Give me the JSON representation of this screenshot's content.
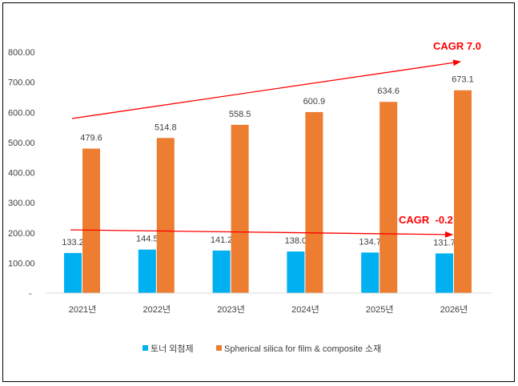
{
  "chart_data": {
    "type": "bar",
    "categories": [
      "2021년",
      "2022년",
      "2023년",
      "2024년",
      "2025년",
      "2026년"
    ],
    "series": [
      {
        "name": "토너 외첨제",
        "color": "#00B0F0",
        "values": [
          133.2,
          144.5,
          141.2,
          138.0,
          134.7,
          131.7
        ]
      },
      {
        "name": "Spherical silica for film & composite 소재",
        "color": "#ED7D31",
        "values": [
          479.6,
          514.8,
          558.5,
          600.9,
          634.6,
          673.1
        ]
      }
    ],
    "ylim": [
      0,
      800
    ],
    "yticks": [
      "-",
      "100.00",
      "200.00",
      "300.00",
      "400.00",
      "500.00",
      "600.00",
      "700.00",
      "800.00"
    ],
    "grid": false,
    "legend": "bottom",
    "annotations": [
      {
        "text": "CAGR 7.0",
        "color": "#FF0000",
        "type": "arrow"
      },
      {
        "text": "CAGR  -0.2",
        "color": "#FF0000",
        "type": "arrow"
      }
    ]
  }
}
